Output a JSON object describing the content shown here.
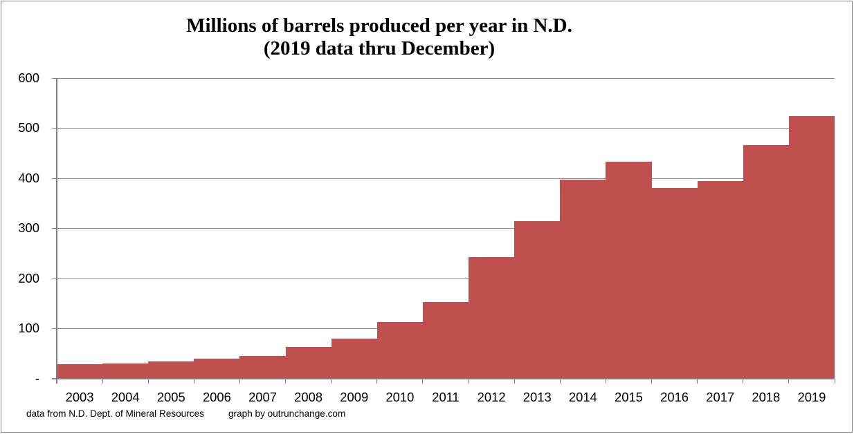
{
  "title": {
    "line1": "Millions of barrels produced per year in N.D.",
    "line2": "(2019 data thru December)"
  },
  "footer": {
    "source": "data from N.D. Dept. of Mineral Resources",
    "credit": "graph by outrunchange.com"
  },
  "chart_data": {
    "type": "bar",
    "title": "Millions of barrels produced per year in N.D. (2019 data thru December)",
    "categories": [
      "2003",
      "2004",
      "2005",
      "2006",
      "2007",
      "2008",
      "2009",
      "2010",
      "2011",
      "2012",
      "2013",
      "2014",
      "2015",
      "2016",
      "2017",
      "2018",
      "2019"
    ],
    "values": [
      29.4,
      31.0,
      34.9,
      39.7,
      45.1,
      62.8,
      79.7,
      113.0,
      152.9,
      242.5,
      313.9,
      396.9,
      432.6,
      380.2,
      394.7,
      466.0,
      524.5
    ],
    "xlabel": "",
    "ylabel": "",
    "ylim": [
      0,
      600
    ],
    "ytick_interval": 100,
    "ytick_labels": [
      "-",
      "100",
      "200",
      "300",
      "400",
      "500",
      "600"
    ],
    "grid": true,
    "legend": false,
    "bar_gap": 0,
    "colors": {
      "bar": "#C0504D",
      "gridline": "#898989",
      "axis": "#808080",
      "text": "#000000",
      "frame": "#808080",
      "background": "#FFFFFF"
    }
  }
}
